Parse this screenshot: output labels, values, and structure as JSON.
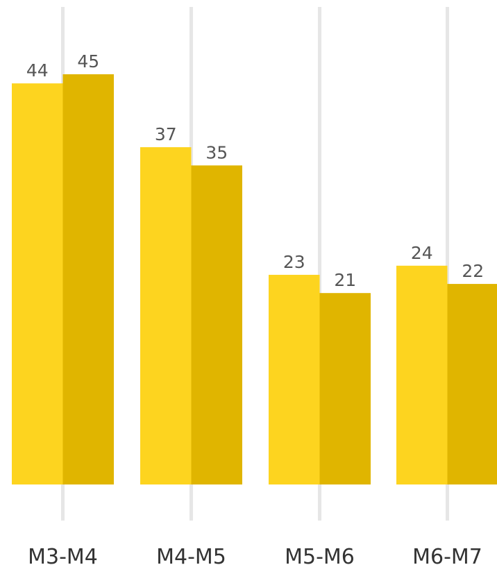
{
  "chart_data": {
    "type": "bar",
    "categories": [
      "M3-M4",
      "M4-M5",
      "M5-M6",
      "M6-M7"
    ],
    "series": [
      {
        "values": [
          44,
          37,
          23,
          24
        ],
        "color": "#fdd41f"
      },
      {
        "values": [
          45,
          35,
          21,
          22
        ],
        "color": "#e0b500"
      }
    ],
    "ylim": [
      0,
      45
    ],
    "grid": true
  }
}
